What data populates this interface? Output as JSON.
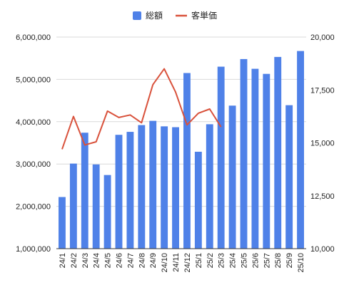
{
  "chart_data": {
    "type": "bar",
    "title": "",
    "xlabel": "",
    "ylabel": "",
    "y2label": "",
    "categories": [
      "24/1",
      "24/2",
      "24/3",
      "24/4",
      "24/5",
      "24/6",
      "24/7",
      "24/8",
      "24/9",
      "24/10",
      "24/11",
      "24/12",
      "25/1",
      "25/2",
      "25/3",
      "25/4",
      "25/5",
      "25/6",
      "25/7",
      "25/8",
      "25/9",
      "25/10"
    ],
    "series": [
      {
        "name": "総額",
        "type": "bar",
        "axis": "left",
        "color": "#4f81e8",
        "values": [
          2220000,
          3010000,
          3740000,
          2990000,
          2740000,
          3690000,
          3760000,
          3920000,
          4020000,
          3890000,
          3870000,
          5150000,
          3290000,
          3940000,
          5300000,
          4380000,
          5480000,
          5250000,
          5130000,
          5530000,
          4390000,
          5670000
        ]
      },
      {
        "name": "客単価",
        "type": "line",
        "axis": "right",
        "color": "#d9523c",
        "values": [
          14700,
          16250,
          14900,
          15050,
          16500,
          16200,
          16320,
          15950,
          17750,
          18500,
          17400,
          15850,
          16400,
          16600,
          15750,
          null,
          null,
          null,
          null,
          null,
          null,
          null
        ]
      }
    ],
    "ylim": [
      1000000,
      6000000
    ],
    "y2lim": [
      10000,
      20000
    ],
    "yticks": [
      "1,000,000",
      "2,000,000",
      "3,000,000",
      "4,000,000",
      "5,000,000",
      "6,000,000"
    ],
    "y2ticks": [
      "10,000",
      "12,500",
      "15,000",
      "17,500",
      "20,000"
    ],
    "legend": "top-center",
    "grid": true
  }
}
